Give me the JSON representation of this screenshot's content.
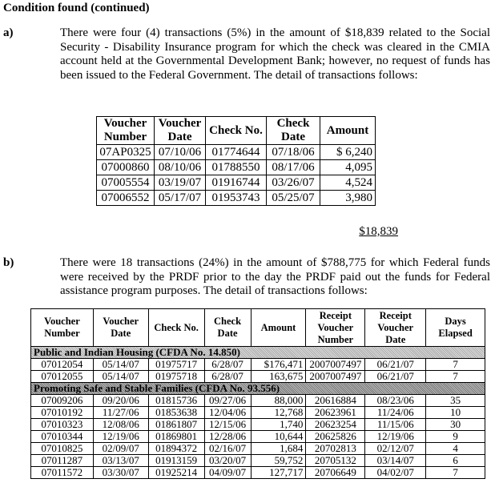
{
  "title": "Condition found (continued)",
  "a": {
    "label": "a)",
    "text": "There were four (4) transactions (5%) in the amount of $18,839 related to the Social Security - Disability Insurance program for which the check was cleared in the CMIA account held at the Governmental Development Bank; however, no request of funds has been issued to the Federal Government. The detail of transactions follows:",
    "headers": [
      "Voucher Number",
      "Voucher Date",
      "Check No.",
      "Check Date",
      "Amount"
    ],
    "rows": [
      [
        "07AP0325",
        "07/10/06",
        "01774644",
        "07/18/06",
        "$  6,240"
      ],
      [
        "07000860",
        "08/10/06",
        "01788550",
        "08/17/06",
        "4,095"
      ],
      [
        "07005554",
        "03/19/07",
        "01916744",
        "03/26/07",
        "4,524"
      ],
      [
        "07006552",
        "05/17/07",
        "01953743",
        "05/25/07",
        "3,980"
      ]
    ],
    "total": "$18,839"
  },
  "b": {
    "label": "b)",
    "text": "There were 18 transactions (24%) in the amount of $788,775 for which Federal funds were received by the PRDF prior to the day the PRDF paid out the funds for Federal assistance program purposes. The detail of transactions follows:",
    "headers": [
      "Voucher Number",
      "Voucher Date",
      "Check No.",
      "Check Date",
      "Amount",
      "Receipt Voucher Number",
      "Receipt Voucher Date",
      "Days Elapsed"
    ],
    "sections": [
      {
        "name": "Public and Indian Housing (CFDA No. 14.850)",
        "rows": [
          [
            "07012054",
            "05/14/07",
            "01975717",
            "6/28/07",
            "$176,471",
            "2007007497",
            "06/21/07",
            "7"
          ],
          [
            "07012055",
            "05/14/07",
            "01975718",
            "6/28/07",
            "163,675",
            "2007007497",
            "06/21/07",
            "7"
          ]
        ]
      },
      {
        "name": "Promoting Safe and Stable Families (CFDA No. 93.556)",
        "rows": [
          [
            "07009206",
            "09/20/06",
            "01815736",
            "09/27/06",
            "88,000",
            "20616884",
            "08/23/06",
            "35"
          ],
          [
            "07010192",
            "11/27/06",
            "01853638",
            "12/04/06",
            "12,768",
            "20623961",
            "11/24/06",
            "10"
          ],
          [
            "07010323",
            "12/08/06",
            "01861807",
            "12/15/06",
            "1,740",
            "20623254",
            "11/15/06",
            "30"
          ],
          [
            "07010344",
            "12/19/06",
            "01869801",
            "12/28/06",
            "10,644",
            "20625826",
            "12/19/06",
            "9"
          ],
          [
            "07010825",
            "02/09/07",
            "01894372",
            "02/16/07",
            "1,684",
            "20702813",
            "02/12/07",
            "4"
          ],
          [
            "07011287",
            "03/13/07",
            "01913159",
            "03/20/07",
            "59,752",
            "20705132",
            "03/14/07",
            "6"
          ],
          [
            "07011572",
            "03/30/07",
            "01925214",
            "04/09/07",
            "127,717",
            "20706649",
            "04/02/07",
            "7"
          ]
        ]
      }
    ]
  }
}
